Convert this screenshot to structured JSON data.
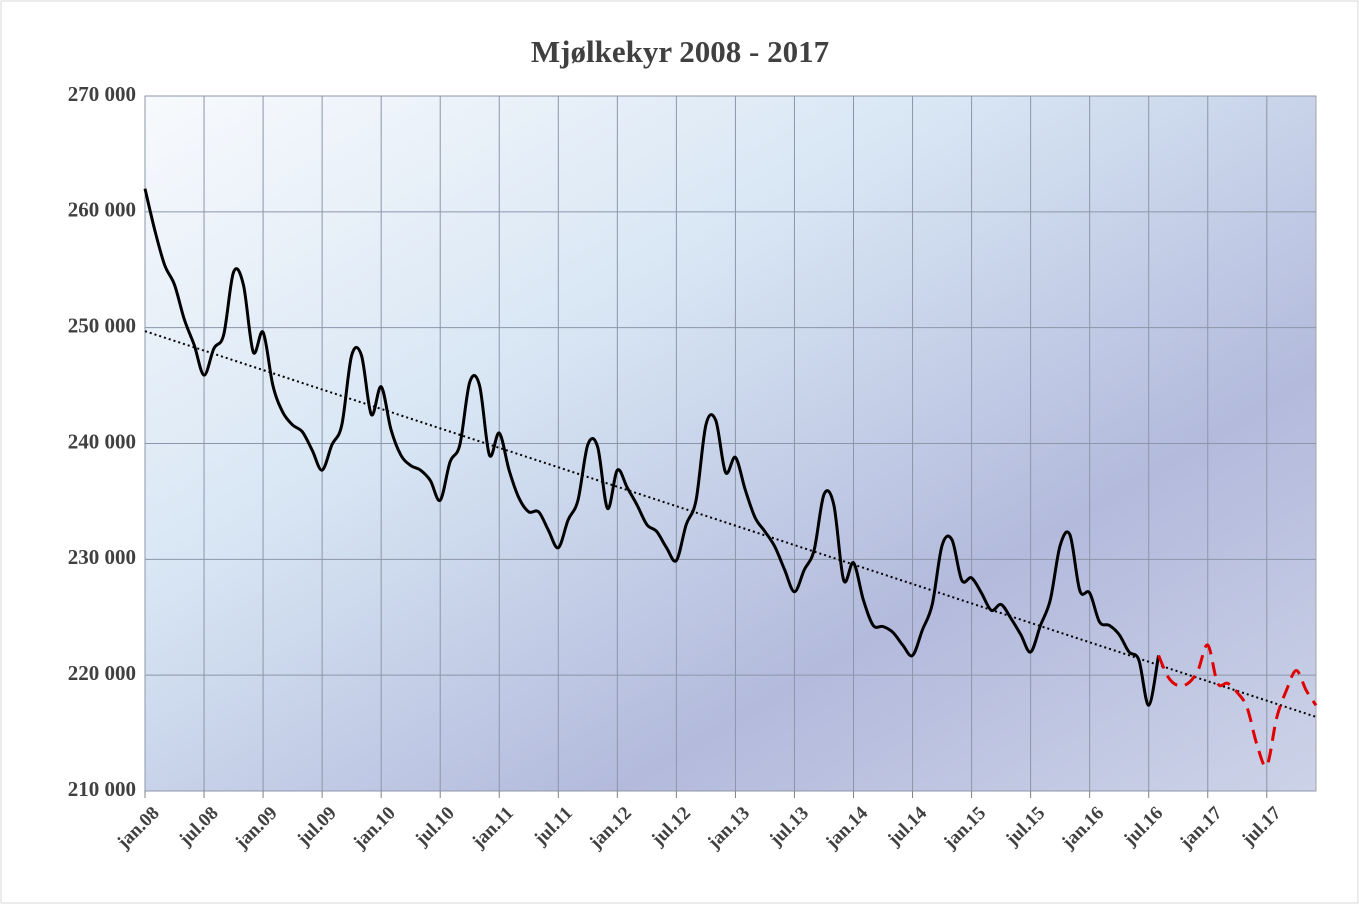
{
  "chart_data": {
    "type": "line",
    "title": "Mjølkekyr 2008 - 2017",
    "categories": [
      "jan.08",
      null,
      null,
      null,
      null,
      null,
      "jul.08",
      null,
      null,
      null,
      null,
      null,
      "jan.09",
      null,
      null,
      null,
      null,
      null,
      "jul.09",
      null,
      null,
      null,
      null,
      null,
      "jan.10",
      null,
      null,
      null,
      null,
      null,
      "jul.10",
      null,
      null,
      null,
      null,
      null,
      "jan.11",
      null,
      null,
      null,
      null,
      null,
      "jul.11",
      null,
      null,
      null,
      null,
      null,
      "jan.12",
      null,
      null,
      null,
      null,
      null,
      "jul.12",
      null,
      null,
      null,
      null,
      null,
      "jan.13",
      null,
      null,
      null,
      null,
      null,
      "jul.13",
      null,
      null,
      null,
      null,
      null,
      "jan.14",
      null,
      null,
      null,
      null,
      null,
      "jul.14",
      null,
      null,
      null,
      null,
      null,
      "jan.15",
      null,
      null,
      null,
      null,
      null,
      "jul.15",
      null,
      null,
      null,
      null,
      null,
      "jan.16",
      null,
      null,
      null,
      null,
      null,
      "jul.16",
      null,
      null,
      null,
      null,
      null,
      "jan.17",
      null,
      null,
      null,
      null,
      null,
      "jul.17",
      null,
      null,
      null,
      null,
      null
    ],
    "series": [
      {
        "color": "#000000",
        "line_style": "solid",
        "values": [
          262000,
          258400,
          255400,
          253700,
          250700,
          248500,
          245900,
          248200,
          249400,
          254800,
          253700,
          247900,
          249600,
          245000,
          242700,
          241600,
          241000,
          239400,
          237700,
          239900,
          241600,
          247600,
          247600,
          242500,
          244900,
          241200,
          239000,
          238100,
          237700,
          236800,
          235100,
          238400,
          239900,
          245300,
          245000,
          239000,
          240900,
          237700,
          235300,
          234100,
          234100,
          232500,
          231000,
          233400,
          235100,
          239900,
          239700,
          234400,
          237700,
          236200,
          234700,
          233000,
          232400,
          231000,
          229900,
          233000,
          235100,
          241600,
          242000,
          237500,
          238800,
          236000,
          233600,
          232400,
          231100,
          229100,
          227200,
          229100,
          230800,
          235600,
          234700,
          228200,
          229700,
          226500,
          224300,
          224200,
          223700,
          222600,
          221700,
          223900,
          226100,
          231200,
          231700,
          228200,
          228400,
          227100,
          225600,
          226100,
          224900,
          223500,
          222000,
          224300,
          226500,
          231200,
          232100,
          227300,
          227100,
          224600,
          224300,
          223500,
          222000,
          221300,
          217400,
          221700,
          null,
          null,
          null,
          null,
          null,
          null,
          null,
          null,
          null,
          null,
          null,
          null,
          null,
          null,
          null,
          null
        ]
      },
      {
        "color": "#e00000",
        "line_style": "dashed",
        "values": [
          null,
          null,
          null,
          null,
          null,
          null,
          null,
          null,
          null,
          null,
          null,
          null,
          null,
          null,
          null,
          null,
          null,
          null,
          null,
          null,
          null,
          null,
          null,
          null,
          null,
          null,
          null,
          null,
          null,
          null,
          null,
          null,
          null,
          null,
          null,
          null,
          null,
          null,
          null,
          null,
          null,
          null,
          null,
          null,
          null,
          null,
          null,
          null,
          null,
          null,
          null,
          null,
          null,
          null,
          null,
          null,
          null,
          null,
          null,
          null,
          null,
          null,
          null,
          null,
          null,
          null,
          null,
          null,
          null,
          null,
          null,
          null,
          null,
          null,
          null,
          null,
          null,
          null,
          null,
          null,
          null,
          null,
          null,
          null,
          null,
          null,
          null,
          null,
          null,
          null,
          null,
          null,
          null,
          null,
          null,
          null,
          null,
          null,
          null,
          null,
          null,
          null,
          null,
          221700,
          219800,
          219100,
          219300,
          220400,
          222600,
          219300,
          219300,
          218500,
          217200,
          214000,
          212200,
          216300,
          218700,
          220400,
          218700,
          217400
        ]
      }
    ],
    "trendline": {
      "color": "#000000",
      "values": [
        249700,
        216400
      ]
    },
    "ylim": [
      210000,
      270000
    ],
    "yticks": [
      {
        "value": 210000,
        "label": "210 000"
      },
      {
        "value": 220000,
        "label": "220 000"
      },
      {
        "value": 230000,
        "label": "230 000"
      },
      {
        "value": 240000,
        "label": "240 000"
      },
      {
        "value": 250000,
        "label": "250 000"
      },
      {
        "value": 260000,
        "label": "260 000"
      },
      {
        "value": 270000,
        "label": "270 000"
      }
    ],
    "grid": true
  }
}
